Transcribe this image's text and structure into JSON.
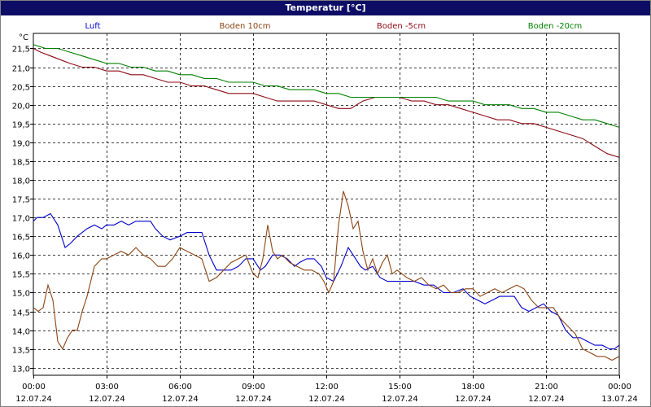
{
  "window": {
    "title": "Temperatur [°C]"
  },
  "chart_data": {
    "type": "line",
    "title": "Temperatur [°C]",
    "ylabel": "°C",
    "xlabel": "",
    "ylim": [
      12.8,
      21.9
    ],
    "xlim": [
      0,
      24
    ],
    "grid": true,
    "legend": "top",
    "y_ticks": [
      "13,0",
      "13,5",
      "14,0",
      "14,5",
      "15,0",
      "15,5",
      "16,0",
      "16,5",
      "17,0",
      "17,5",
      "18,0",
      "18,5",
      "19,0",
      "19,5",
      "20,0",
      "20,5",
      "21,0",
      "21,5"
    ],
    "x_ticks": [
      {
        "time": "00:00",
        "date": "12.07.24"
      },
      {
        "time": "03:00",
        "date": "12.07.24"
      },
      {
        "time": "06:00",
        "date": "12.07.24"
      },
      {
        "time": "09:00",
        "date": "12.07.24"
      },
      {
        "time": "12:00",
        "date": "12.07.24"
      },
      {
        "time": "15:00",
        "date": "12.07.24"
      },
      {
        "time": "18:00",
        "date": "12.07.24"
      },
      {
        "time": "21:00",
        "date": "12.07.24"
      },
      {
        "time": "00:00",
        "date": "13.07.24"
      }
    ],
    "series": [
      {
        "name": "Luft",
        "color": "#0000cc",
        "x": [
          0,
          0.15,
          0.4,
          0.7,
          1.0,
          1.3,
          1.5,
          1.8,
          2.2,
          2.5,
          2.8,
          3.0,
          3.3,
          3.6,
          3.9,
          4.2,
          4.5,
          4.8,
          5.0,
          5.3,
          5.6,
          6.0,
          6.3,
          6.6,
          6.9,
          7.2,
          7.5,
          7.8,
          8.1,
          8.4,
          8.7,
          9.0,
          9.3,
          9.5,
          9.8,
          10.1,
          10.4,
          10.7,
          10.9,
          11.2,
          11.5,
          11.8,
          12.0,
          12.3,
          12.6,
          12.9,
          13.1,
          13.4,
          13.6,
          13.9,
          14.2,
          14.5,
          14.8,
          15.2,
          15.6,
          16.0,
          16.4,
          16.8,
          17.2,
          17.6,
          17.9,
          18.2,
          18.5,
          18.8,
          19.1,
          19.4,
          19.7,
          20.0,
          20.3,
          20.6,
          20.9,
          21.2,
          21.5,
          21.8,
          22.1,
          22.4,
          22.7,
          23.0,
          23.3,
          23.6,
          23.8,
          24.0
        ],
        "values": [
          16.9,
          17.0,
          17.0,
          17.1,
          16.8,
          16.2,
          16.3,
          16.5,
          16.7,
          16.8,
          16.7,
          16.8,
          16.8,
          16.9,
          16.8,
          16.9,
          16.9,
          16.9,
          16.7,
          16.5,
          16.4,
          16.5,
          16.6,
          16.6,
          16.6,
          16.0,
          15.6,
          15.6,
          15.6,
          15.7,
          15.9,
          15.9,
          15.6,
          15.7,
          16.0,
          16.0,
          15.9,
          15.7,
          15.8,
          15.9,
          15.9,
          15.7,
          15.4,
          15.3,
          15.7,
          16.2,
          16.0,
          15.7,
          15.6,
          15.7,
          15.4,
          15.3,
          15.3,
          15.3,
          15.3,
          15.2,
          15.2,
          15.0,
          15.0,
          15.1,
          14.9,
          14.8,
          14.7,
          14.8,
          14.9,
          14.9,
          14.9,
          14.6,
          14.5,
          14.6,
          14.7,
          14.5,
          14.4,
          14.0,
          13.8,
          13.8,
          13.7,
          13.6,
          13.6,
          13.5,
          13.5,
          13.6
        ]
      },
      {
        "name": "Boden 10cm",
        "color": "#8b4513",
        "x": [
          0,
          0.2,
          0.4,
          0.6,
          0.8,
          1.0,
          1.2,
          1.4,
          1.6,
          1.8,
          2.0,
          2.2,
          2.5,
          2.8,
          3.0,
          3.3,
          3.6,
          3.9,
          4.2,
          4.5,
          4.8,
          5.1,
          5.4,
          5.7,
          6.0,
          6.3,
          6.6,
          6.9,
          7.2,
          7.5,
          7.8,
          8.1,
          8.4,
          8.7,
          9.0,
          9.2,
          9.4,
          9.6,
          9.8,
          10.0,
          10.2,
          10.5,
          10.8,
          11.1,
          11.4,
          11.7,
          11.9,
          12.1,
          12.3,
          12.5,
          12.7,
          12.9,
          13.1,
          13.3,
          13.5,
          13.7,
          13.9,
          14.1,
          14.3,
          14.5,
          14.7,
          14.9,
          15.1,
          15.3,
          15.6,
          15.9,
          16.2,
          16.5,
          16.8,
          17.1,
          17.4,
          17.7,
          18.0,
          18.3,
          18.6,
          18.9,
          19.2,
          19.5,
          19.8,
          20.1,
          20.4,
          20.7,
          21.0,
          21.3,
          21.6,
          21.9,
          22.2,
          22.5,
          22.8,
          23.1,
          23.4,
          23.7,
          24.0
        ],
        "values": [
          14.6,
          14.5,
          14.6,
          15.2,
          14.8,
          13.7,
          13.5,
          13.8,
          14.0,
          14.0,
          14.5,
          14.9,
          15.7,
          15.9,
          15.9,
          16.0,
          16.1,
          16.0,
          16.2,
          16.0,
          15.9,
          15.7,
          15.7,
          15.9,
          16.2,
          16.1,
          16.0,
          15.9,
          15.3,
          15.4,
          15.6,
          15.8,
          15.9,
          16.0,
          15.5,
          15.4,
          15.9,
          16.8,
          16.1,
          15.9,
          16.0,
          15.8,
          15.7,
          15.6,
          15.6,
          15.5,
          15.3,
          15.0,
          15.3,
          16.8,
          17.7,
          17.3,
          16.7,
          16.9,
          16.1,
          15.6,
          15.9,
          15.5,
          15.8,
          16.0,
          15.5,
          15.6,
          15.5,
          15.4,
          15.3,
          15.4,
          15.2,
          15.1,
          15.2,
          15.0,
          15.0,
          15.1,
          15.1,
          14.9,
          15.0,
          15.1,
          15.0,
          15.1,
          15.2,
          15.1,
          14.8,
          14.6,
          14.6,
          14.6,
          14.3,
          14.1,
          13.9,
          13.5,
          13.4,
          13.3,
          13.3,
          13.2,
          13.3
        ]
      },
      {
        "name": "Boden -5cm",
        "color": "#8b0a14",
        "x": [
          0,
          0.3,
          0.7,
          1.1,
          1.5,
          2.0,
          2.5,
          3.0,
          3.5,
          4.0,
          4.5,
          5.0,
          5.5,
          6.0,
          6.5,
          7.0,
          7.5,
          8.0,
          8.5,
          9.0,
          9.5,
          10.0,
          10.5,
          11.0,
          11.5,
          12.0,
          12.5,
          13.0,
          13.5,
          14.0,
          14.5,
          15.0,
          15.5,
          16.0,
          16.5,
          17.0,
          17.5,
          18.0,
          18.5,
          19.0,
          19.5,
          20.0,
          20.5,
          21.0,
          21.5,
          22.0,
          22.5,
          23.0,
          23.5,
          24.0
        ],
        "values": [
          21.5,
          21.4,
          21.3,
          21.2,
          21.1,
          21.0,
          21.0,
          20.9,
          20.9,
          20.8,
          20.8,
          20.7,
          20.6,
          20.6,
          20.5,
          20.5,
          20.4,
          20.3,
          20.3,
          20.3,
          20.2,
          20.1,
          20.1,
          20.1,
          20.1,
          20.0,
          19.9,
          19.9,
          20.1,
          20.2,
          20.2,
          20.2,
          20.1,
          20.1,
          20.0,
          20.0,
          19.9,
          19.8,
          19.7,
          19.6,
          19.6,
          19.5,
          19.5,
          19.4,
          19.3,
          19.2,
          19.1,
          18.9,
          18.7,
          18.6
        ]
      },
      {
        "name": "Boden -20cm",
        "color": "#008000",
        "x": [
          0,
          0.5,
          1.0,
          1.5,
          2.0,
          2.5,
          3.0,
          3.5,
          4.0,
          4.5,
          5.0,
          5.5,
          6.0,
          6.5,
          7.0,
          7.5,
          8.0,
          8.5,
          9.0,
          9.5,
          10.0,
          10.5,
          11.0,
          11.5,
          12.0,
          12.5,
          13.0,
          13.5,
          14.0,
          14.5,
          15.0,
          15.5,
          16.0,
          16.5,
          17.0,
          17.5,
          18.0,
          18.5,
          19.0,
          19.5,
          20.0,
          20.5,
          21.0,
          21.5,
          22.0,
          22.5,
          23.0,
          23.5,
          24.0
        ],
        "values": [
          21.6,
          21.5,
          21.5,
          21.4,
          21.3,
          21.2,
          21.1,
          21.1,
          21.0,
          21.0,
          20.9,
          20.9,
          20.8,
          20.8,
          20.7,
          20.7,
          20.6,
          20.6,
          20.6,
          20.5,
          20.5,
          20.4,
          20.4,
          20.4,
          20.3,
          20.3,
          20.2,
          20.2,
          20.2,
          20.2,
          20.2,
          20.2,
          20.2,
          20.2,
          20.1,
          20.1,
          20.1,
          20.0,
          20.0,
          20.0,
          19.9,
          19.9,
          19.8,
          19.8,
          19.7,
          19.6,
          19.6,
          19.5,
          19.4
        ]
      }
    ]
  }
}
